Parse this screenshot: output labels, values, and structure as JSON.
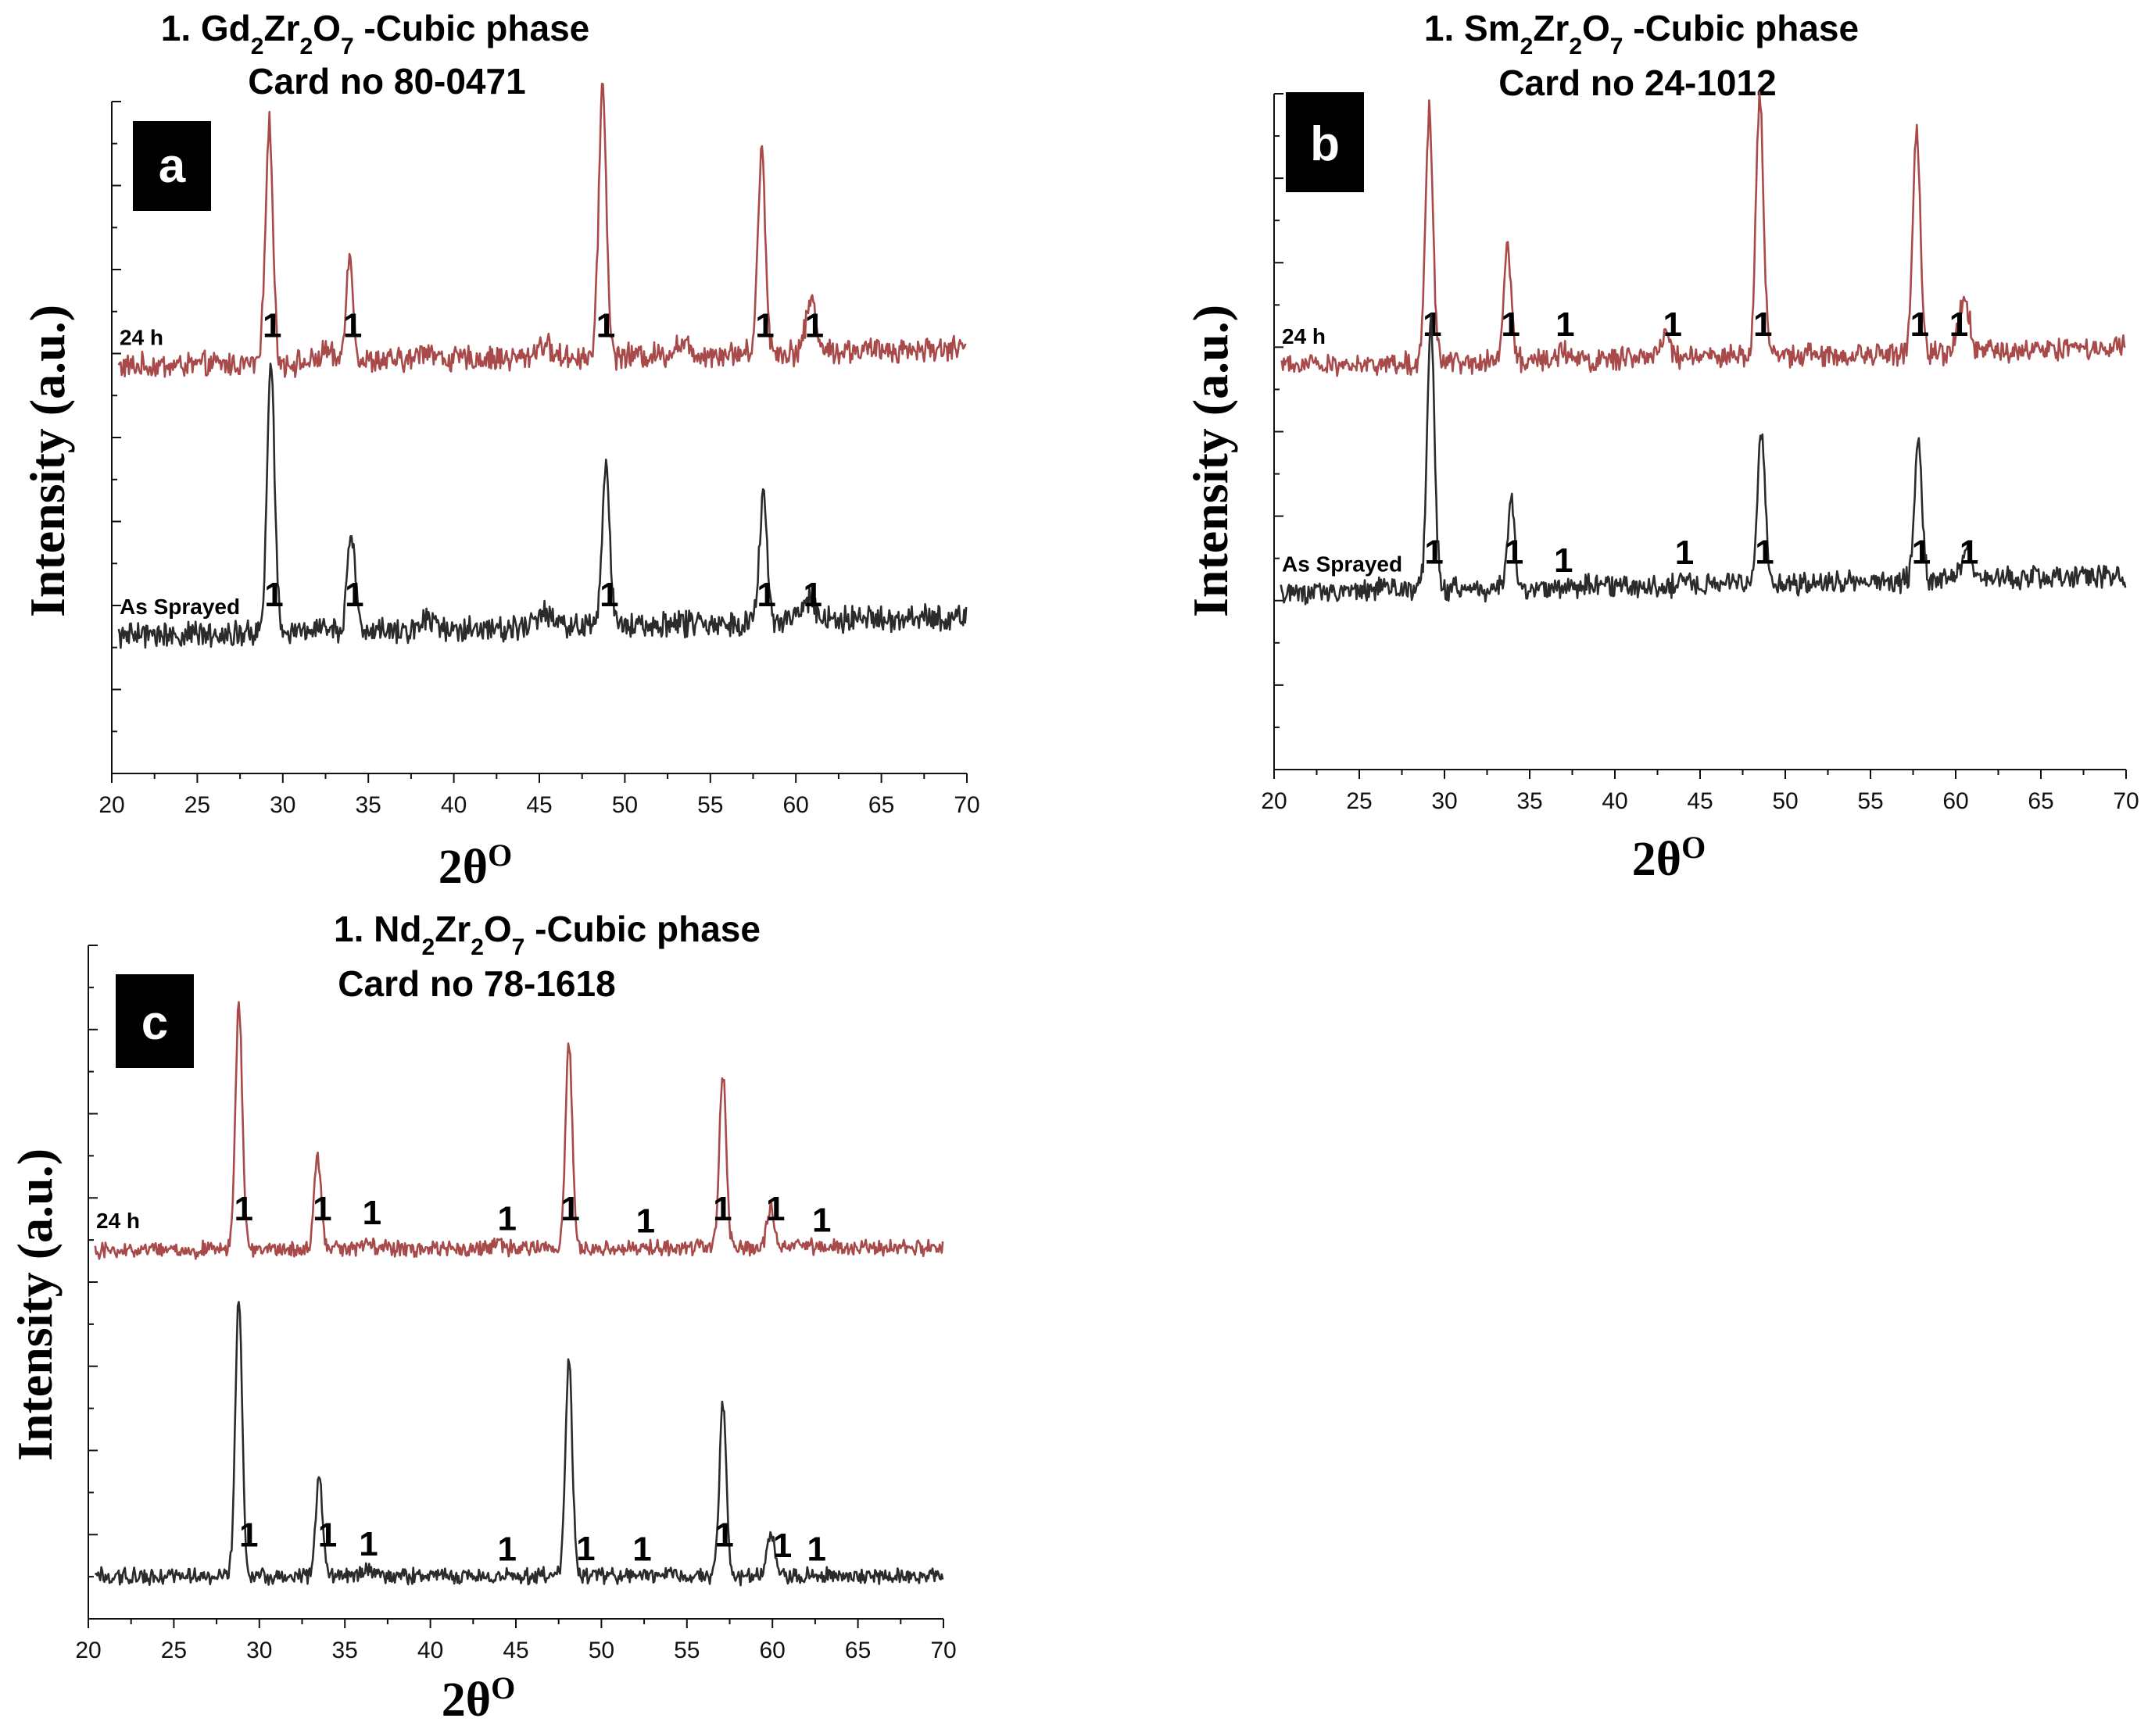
{
  "colors": {
    "aged": "#a84a4a",
    "as_sprayed": "#2b2b2b",
    "axis": "#111111",
    "letter_bg": "#000000",
    "letter_fg": "#ffffff"
  },
  "chart_data": [
    {
      "type": "line",
      "panel": "a",
      "title_line1": {
        "prefix": "1. Gd",
        "sub1": "2",
        "mid": "Zr",
        "sub2": "2",
        "mid2": "O",
        "sub3": "7",
        "suffix": " -Cubic phase"
      },
      "title_line2": "Card no  80-0471",
      "xlabel": "2θ",
      "xlabel_sup": "O",
      "ylabel": "Intensity (a.u.)",
      "xlim": [
        20,
        70
      ],
      "x_ticks": [
        "20",
        "25",
        "30",
        "35",
        "40",
        "45",
        "50",
        "55",
        "60",
        "65",
        "70"
      ],
      "series": [
        {
          "name": "24 h",
          "color_key": "aged",
          "baseline": 0.42,
          "end_baseline": 0.62,
          "peaks": [
            [
              29.2,
              2.55,
              0.22
            ],
            [
              33.9,
              1.1,
              0.22
            ],
            [
              48.7,
              2.9,
              0.22
            ],
            [
              58.0,
              2.15,
              0.22
            ],
            [
              60.9,
              0.55,
              0.3
            ],
            [
              32.5,
              0.12,
              0.3
            ],
            [
              38.4,
              0.12,
              0.4
            ],
            [
              45.2,
              0.15,
              0.4
            ],
            [
              53.3,
              0.12,
              0.4
            ]
          ],
          "labels": [
            [
              29.2,
              "1"
            ],
            [
              33.9,
              "1"
            ],
            [
              48.7,
              "1"
            ],
            [
              58.0,
              "1"
            ],
            [
              60.9,
              "1"
            ]
          ]
        },
        {
          "name": "As Sprayed",
          "color_key": "as_sprayed",
          "baseline": -2.45,
          "end_baseline": -2.25,
          "peaks": [
            [
              29.3,
              2.85,
              0.22
            ],
            [
              34.0,
              1.05,
              0.22
            ],
            [
              48.9,
              1.7,
              0.22
            ],
            [
              58.1,
              1.35,
              0.22
            ],
            [
              60.8,
              0.25,
              0.3
            ],
            [
              32.3,
              0.1,
              0.3
            ],
            [
              38.5,
              0.12,
              0.4
            ],
            [
              45.3,
              0.15,
              0.4
            ]
          ],
          "labels": [
            [
              29.3,
              "1"
            ],
            [
              34.0,
              "1"
            ],
            [
              48.9,
              "1"
            ],
            [
              58.1,
              "1"
            ],
            [
              60.8,
              "1"
            ]
          ]
        }
      ]
    },
    {
      "type": "line",
      "panel": "b",
      "title_line1": {
        "prefix": "1. Sm",
        "sub1": "2",
        "mid": "Zr",
        "sub2": "2",
        "mid2": "O",
        "sub3": "7",
        "suffix": " -Cubic phase"
      },
      "title_line2": "Card no  24-1012",
      "xlabel": "2θ",
      "xlabel_sup": "O",
      "ylabel": "Intensity (a.u.)",
      "xlim": [
        20,
        70
      ],
      "x_ticks": [
        "20",
        "25",
        "30",
        "35",
        "40",
        "45",
        "50",
        "55",
        "60",
        "65",
        "70"
      ],
      "series": [
        {
          "name": "24 h",
          "color_key": "aged",
          "baseline": 0.4,
          "end_baseline": 0.6,
          "peaks": [
            [
              29.1,
              2.9,
              0.22
            ],
            [
              33.7,
              1.35,
              0.22
            ],
            [
              37.0,
              0.1,
              0.4
            ],
            [
              42.9,
              0.25,
              0.25
            ],
            [
              48.5,
              3.0,
              0.22
            ],
            [
              57.7,
              2.6,
              0.22
            ],
            [
              60.5,
              0.65,
              0.3
            ]
          ],
          "labels": [
            [
              29.1,
              "1"
            ],
            [
              33.7,
              "1"
            ],
            [
              36.9,
              "1"
            ],
            [
              43.2,
              "1"
            ],
            [
              48.5,
              "1"
            ],
            [
              57.7,
              "1"
            ],
            [
              60.0,
              "1"
            ]
          ]
        },
        {
          "name": "As Sprayed",
          "color_key": "as_sprayed",
          "baseline": -2.25,
          "end_baseline": -2.05,
          "peaks": [
            [
              29.2,
              3.1,
              0.22
            ],
            [
              33.9,
              1.0,
              0.22
            ],
            [
              48.6,
              1.75,
              0.22
            ],
            [
              57.8,
              1.6,
              0.22
            ],
            [
              60.6,
              0.35,
              0.3
            ],
            [
              26.5,
              0.12,
              0.3
            ],
            [
              44.1,
              0.08,
              0.3
            ]
          ],
          "labels": [
            [
              29.2,
              "1"
            ],
            [
              33.9,
              "1"
            ],
            [
              36.8,
              "1"
            ],
            [
              43.9,
              "1"
            ],
            [
              48.6,
              "1"
            ],
            [
              57.8,
              "1"
            ],
            [
              60.6,
              "1"
            ]
          ]
        }
      ]
    },
    {
      "type": "line",
      "panel": "c",
      "title_line1": {
        "prefix": "1. Nd",
        "sub1": "2",
        "mid": "Zr",
        "sub2": "2",
        "mid2": "O",
        "sub3": "7",
        "suffix": " -Cubic phase"
      },
      "title_line2": "Card no  78-1618",
      "xlabel": "2θ",
      "xlabel_sup": "O",
      "ylabel": "Intensity (a.u.)",
      "xlim": [
        20,
        70
      ],
      "x_ticks": [
        "20",
        "25",
        "30",
        "35",
        "40",
        "45",
        "50",
        "55",
        "60",
        "65",
        "70"
      ],
      "series": [
        {
          "name": "24 h",
          "color_key": "aged",
          "baseline": 0.0,
          "end_baseline": 0.05,
          "peaks": [
            [
              28.8,
              4.0,
              0.2
            ],
            [
              33.4,
              1.55,
              0.2
            ],
            [
              36.4,
              0.15,
              0.3
            ],
            [
              48.1,
              3.35,
              0.2
            ],
            [
              57.1,
              2.9,
              0.2
            ],
            [
              59.9,
              0.65,
              0.22
            ],
            [
              44.0,
              0.08,
              0.3
            ]
          ],
          "labels": [
            [
              28.9,
              "1"
            ],
            [
              33.5,
              "1"
            ],
            [
              36.4,
              "1"
            ],
            [
              44.3,
              "1"
            ],
            [
              48.0,
              "1"
            ],
            [
              52.4,
              "1"
            ],
            [
              56.9,
              "1"
            ],
            [
              60.0,
              "1"
            ],
            [
              62.7,
              "1"
            ]
          ]
        },
        {
          "name": "",
          "color_key": "as_sprayed",
          "baseline": -5.35,
          "end_baseline": -5.35,
          "peaks": [
            [
              28.8,
              4.6,
              0.2
            ],
            [
              33.5,
              1.6,
              0.2
            ],
            [
              48.1,
              3.5,
              0.2
            ],
            [
              57.1,
              2.85,
              0.2
            ],
            [
              59.9,
              0.7,
              0.22
            ],
            [
              36.4,
              0.1,
              0.3
            ]
          ],
          "labels": [
            [
              29.2,
              "1"
            ],
            [
              33.8,
              "1"
            ],
            [
              36.2,
              "1"
            ],
            [
              44.3,
              "1"
            ],
            [
              48.9,
              "1"
            ],
            [
              52.2,
              "1"
            ],
            [
              57.0,
              "1"
            ],
            [
              60.4,
              "1"
            ],
            [
              62.4,
              "1"
            ]
          ]
        }
      ]
    }
  ]
}
